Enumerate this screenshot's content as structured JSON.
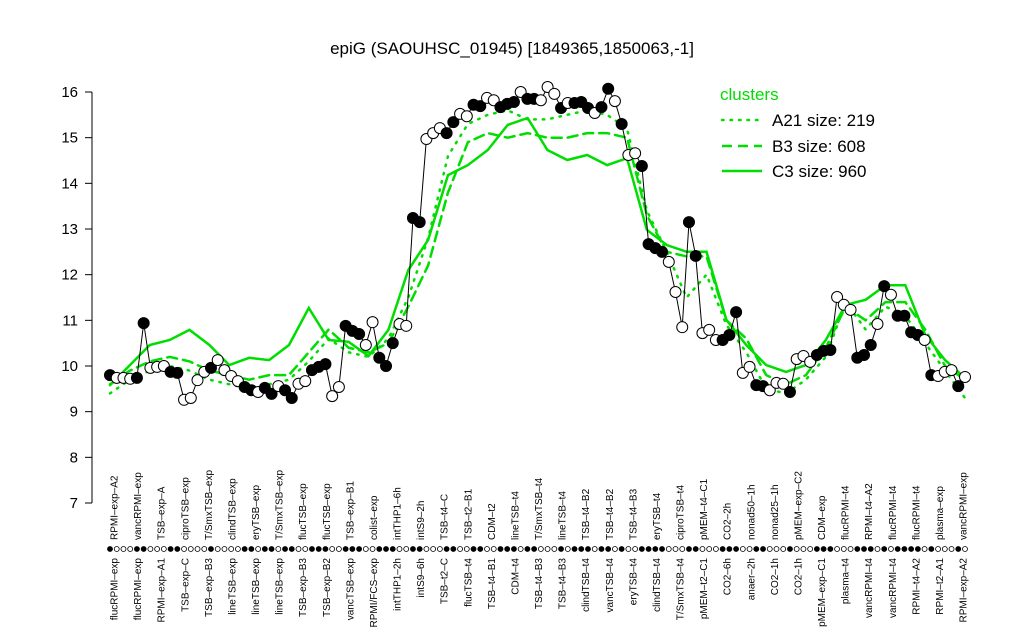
{
  "chart_data": {
    "type": "line",
    "title": "epiG (SAOUHSC_01945) [1849365,1850063,-1]",
    "xlabel": "",
    "ylabel": "",
    "ylim": [
      7,
      16
    ],
    "yticks": [
      7,
      8,
      9,
      10,
      11,
      12,
      13,
      14,
      15,
      16
    ],
    "grid": false,
    "colors": {
      "points_line": "#000000",
      "clusters": "#00dd00"
    },
    "legend": {
      "title": "clusters",
      "placement": "top-right",
      "entries": [
        {
          "label": "A21 size: 219",
          "style": "dotted"
        },
        {
          "label": "B3 size: 608",
          "style": "dashed"
        },
        {
          "label": "C3 size: 960",
          "style": "solid"
        }
      ]
    },
    "points": {
      "values": [
        9.8,
        9.74,
        9.74,
        9.72,
        9.74,
        10.94,
        9.96,
        9.98,
        10.0,
        9.87,
        9.85,
        9.26,
        9.3,
        9.69,
        9.87,
        9.96,
        10.13,
        9.91,
        9.78,
        9.67,
        9.54,
        9.47,
        9.43,
        9.52,
        9.39,
        9.56,
        9.47,
        9.3,
        9.61,
        9.67,
        9.91,
        9.98,
        10.04,
        9.34,
        9.54,
        10.88,
        10.77,
        10.7,
        10.46,
        10.96,
        10.18,
        10.0,
        10.5,
        10.92,
        10.88,
        13.24,
        13.15,
        14.97,
        15.1,
        15.21,
        15.1,
        15.34,
        15.52,
        15.47,
        15.72,
        15.69,
        15.87,
        15.82,
        15.67,
        15.74,
        15.78,
        16.0,
        15.85,
        15.85,
        15.82,
        16.11,
        15.96,
        15.65,
        15.76,
        15.76,
        15.78,
        15.65,
        15.54,
        15.67,
        16.07,
        15.8,
        15.3,
        14.62,
        14.66,
        14.38,
        12.67,
        12.58,
        12.5,
        12.28,
        11.62,
        10.85,
        13.15,
        12.41,
        10.72,
        10.79,
        10.57,
        10.57,
        10.68,
        11.18,
        9.85,
        9.98,
        9.58,
        9.56,
        9.47,
        9.63,
        9.61,
        9.43,
        10.15,
        10.22,
        10.09,
        10.24,
        10.33,
        10.35,
        11.51,
        11.34,
        11.23,
        10.18,
        10.24,
        10.46,
        10.92,
        11.75,
        11.56,
        11.1,
        11.1,
        10.74,
        10.68,
        10.57,
        9.8,
        9.78,
        9.87,
        9.91,
        9.56,
        9.76
      ],
      "filled": [
        1,
        0,
        0,
        0,
        1,
        1,
        0,
        0,
        0,
        1,
        1,
        0,
        0,
        0,
        0,
        1,
        0,
        0,
        0,
        0,
        1,
        1,
        0,
        1,
        1,
        0,
        1,
        1,
        0,
        0,
        1,
        1,
        1,
        0,
        0,
        1,
        1,
        1,
        0,
        0,
        1,
        1,
        1,
        0,
        0,
        1,
        1,
        0,
        0,
        0,
        1,
        1,
        0,
        0,
        1,
        1,
        0,
        0,
        1,
        1,
        1,
        0,
        1,
        1,
        0,
        0,
        0,
        1,
        0,
        1,
        1,
        1,
        0,
        1,
        1,
        0,
        1,
        0,
        0,
        1,
        1,
        1,
        1,
        0,
        0,
        0,
        1,
        1,
        0,
        0,
        0,
        1,
        1,
        1,
        0,
        0,
        1,
        1,
        0,
        0,
        0,
        1,
        0,
        0,
        0,
        1,
        1,
        1,
        0,
        0,
        0,
        1,
        1,
        1,
        0,
        1,
        0,
        1,
        1,
        1,
        1,
        0,
        1,
        0,
        0,
        0,
        1,
        0
      ]
    },
    "series": [
      {
        "name": "A21 size: 219",
        "style": "dotted",
        "values": [
          9.4,
          9.7,
          9.9,
          10.0,
          9.9,
          9.7,
          9.6,
          9.5,
          9.6,
          9.7,
          10.1,
          10.6,
          10.3,
          10.2,
          10.6,
          11.5,
          12.8,
          14.6,
          15.3,
          15.5,
          15.6,
          15.4,
          15.4,
          15.5,
          15.6,
          15.5,
          15.2,
          13.4,
          12.5,
          11.5,
          12.0,
          10.9,
          10.3,
          9.5,
          9.4,
          9.7,
          10.2,
          11.4,
          10.8,
          11.3,
          11.1,
          10.5,
          9.9,
          9.3
        ]
      },
      {
        "name": "B3 size: 608",
        "style": "dashed",
        "values": [
          9.6,
          9.9,
          10.1,
          10.2,
          10.1,
          9.9,
          9.8,
          9.7,
          9.8,
          9.8,
          10.3,
          10.8,
          10.4,
          10.3,
          10.5,
          11.3,
          12.2,
          13.8,
          14.9,
          15.1,
          15.0,
          15.1,
          15.0,
          15.0,
          15.1,
          15.1,
          15.0,
          13.3,
          12.5,
          12.4,
          12.4,
          11.0,
          10.6,
          9.8,
          9.6,
          9.8,
          10.4,
          11.3,
          11.0,
          11.4,
          11.4,
          10.8,
          10.0,
          9.7
        ]
      },
      {
        "name": "C3 size: 960",
        "style": "solid",
        "values": [
          9.58,
          10.02,
          10.46,
          10.57,
          10.79,
          10.46,
          10.02,
          10.18,
          10.13,
          10.46,
          11.27,
          10.57,
          10.53,
          10.22,
          10.79,
          12.1,
          12.76,
          14.18,
          14.4,
          14.73,
          15.28,
          15.43,
          14.73,
          14.51,
          14.62,
          14.4,
          14.55,
          12.98,
          12.65,
          12.5,
          12.5,
          11.01,
          10.46,
          10.02,
          9.87,
          10.02,
          10.57,
          11.34,
          11.45,
          11.77,
          11.77,
          10.68,
          10.13,
          9.74
        ]
      }
    ],
    "xtick_labels_top": [
      "RPMI–exp–A2",
      "vancRPMI–exp",
      "TSB–exp–A",
      "ciproTSB–exp",
      "T/SmxTSB–exp",
      "clindTSB–exp",
      "eryTSB–exp",
      "T/SmxTSB–exp",
      "flucTSB–exp",
      "flucTSB–exp",
      "TSB–exp–B1",
      "colist–exp",
      "intTHP1–6h",
      "intS9–2h",
      "TSB–t4–C",
      "TSB–t2–B1",
      "CDM–t2",
      "lineTSB–t4",
      "T/SmxTSB–t4",
      "lineTSB–t4",
      "TSB–t4–B2",
      "TSB–t4–B2",
      "TSB–t4–B3",
      "eryTSB–t4",
      "ciproTSB–t4",
      "pMEM–t4–C1",
      "CO2–2h",
      "nonad50–1h",
      "nonad25–1h",
      "pMEM–exp–C2",
      "CDM–exp",
      "flucRPMI–t4",
      "RPMI–t4–A2",
      "flucRPMI–t4",
      "flucRPMI–t4",
      "plasma–exp",
      "vancRPMI–exp"
    ],
    "xtick_labels_bottom": [
      "flucRPMI–exp",
      "flucRPMI–exp",
      "RPMI–exp–A1",
      "TSB–exp–C",
      "TSB–exp–B3",
      "lineTSB–exp",
      "lineTSB–exp",
      "lineTSB–exp",
      "TSB–exp–B3",
      "TSB–exp–B2",
      "vancTSB–exp",
      "RPMI/FCS–exp",
      "intTHP1–2h",
      "intS9–6h",
      "TSB–t2–C",
      "flucTSB–t4",
      "TSB–t4–B1",
      "CDM–t4",
      "TSB–t4–B3",
      "TSB–t4–B3",
      "clindTSB–t4",
      "vancTSB–t4",
      "eryTSB–t4",
      "clindTSB–t4",
      "T/SmxTSB–t4",
      "pMEM–t2–C1",
      "CO2–6h",
      "anaer–2h",
      "CO2–1h",
      "CO2–1h",
      "pMEM–exp–C1",
      "plasma–t4",
      "vancRPMI–t4",
      "vancRPMI–t4",
      "RPMI–t4–A2",
      "RPMI–t2–A1",
      "RPMI–exp–A2"
    ]
  }
}
